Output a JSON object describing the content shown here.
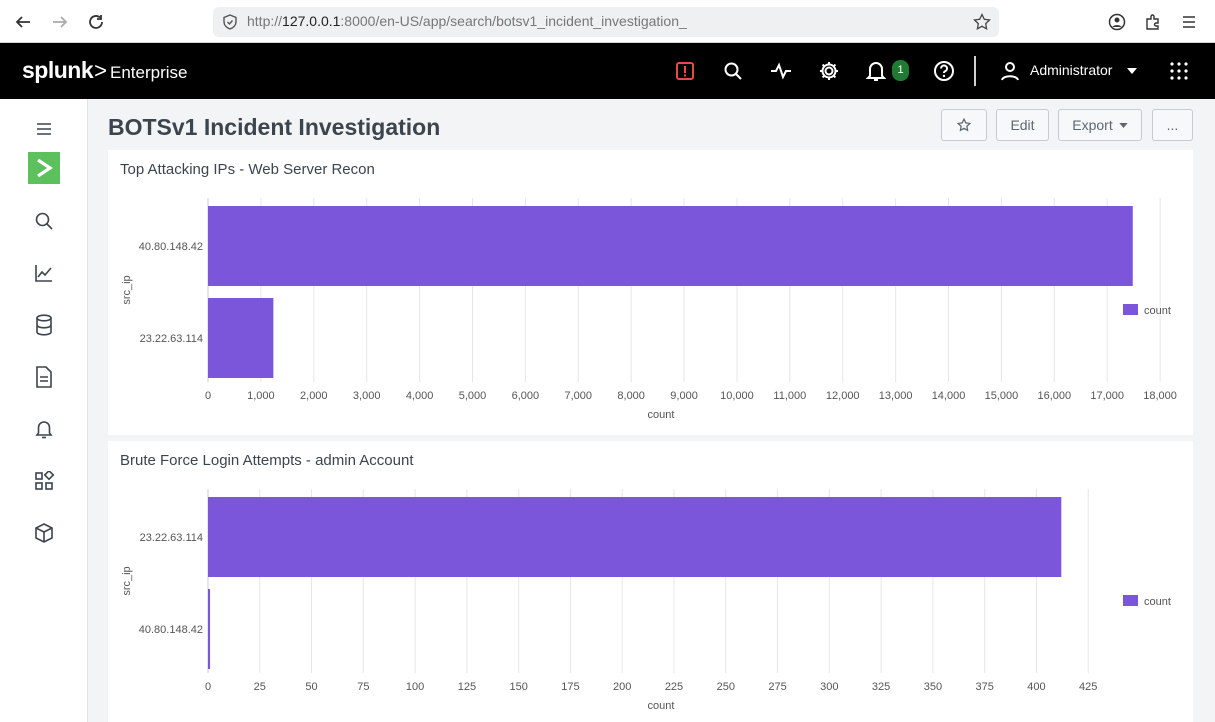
{
  "browser": {
    "url_prefix": "http://",
    "url_host": "127.0.0.1",
    "url_rest": ":8000/en-US/app/search/botsv1_incident_investigation_"
  },
  "topnav": {
    "brand": "splunk",
    "product": "Enterprise",
    "notification_count": "1",
    "user": "Administrator",
    "alert_color": "#e84a4a",
    "badge_color": "#1f7a34"
  },
  "sidebar": {
    "items": [
      "menu-icon",
      "app-tile",
      "search-icon",
      "chart-icon",
      "datasets-icon",
      "reports-icon",
      "alerts-icon",
      "dashboards-icon",
      "apps-icon"
    ],
    "app_color": "#5cc05c"
  },
  "dashboard": {
    "title": "BOTSv1 Incident Investigation",
    "edit_label": "Edit",
    "export_label": "Export",
    "more_label": "..."
  },
  "panels": [
    {
      "title": "Top Attacking IPs - Web Server Recon",
      "ylabel": "src_ip",
      "xlabel": "count",
      "legend": "count"
    },
    {
      "title": "Brute Force Login Attempts - admin Account",
      "ylabel": "src_ip",
      "xlabel": "count",
      "legend": "count"
    }
  ],
  "chart_data": [
    {
      "type": "bar",
      "orientation": "horizontal",
      "categories": [
        "40.80.148.42",
        "23.22.63.114"
      ],
      "series": [
        {
          "name": "count",
          "values": [
            17483,
            1236
          ]
        }
      ],
      "xlim": [
        0,
        19000
      ],
      "xticks": [
        0,
        1000,
        2000,
        3000,
        4000,
        5000,
        6000,
        7000,
        8000,
        9000,
        10000,
        11000,
        12000,
        13000,
        14000,
        15000,
        16000,
        17000,
        18000
      ],
      "xticklabels": [
        "0",
        "1,000",
        "2,000",
        "3,000",
        "4,000",
        "5,000",
        "6,000",
        "7,000",
        "8,000",
        "9,000",
        "10,000",
        "11,000",
        "12,000",
        "13,000",
        "14,000",
        "15,000",
        "16,000",
        "17,000",
        "18,000"
      ],
      "xlabel": "count",
      "ylabel": "src_ip",
      "grid": true,
      "legend": "right",
      "color": "#7b56db"
    },
    {
      "type": "bar",
      "orientation": "horizontal",
      "categories": [
        "23.22.63.114",
        "40.80.148.42"
      ],
      "series": [
        {
          "name": "count",
          "values": [
            412,
            1
          ]
        }
      ],
      "xlim": [
        0,
        450
      ],
      "xticks": [
        0,
        25,
        50,
        75,
        100,
        125,
        150,
        175,
        200,
        225,
        250,
        275,
        300,
        325,
        350,
        375,
        400,
        425
      ],
      "xticklabels": [
        "0",
        "25",
        "50",
        "75",
        "100",
        "125",
        "150",
        "175",
        "200",
        "225",
        "250",
        "275",
        "300",
        "325",
        "350",
        "375",
        "400",
        "425"
      ],
      "xlabel": "count",
      "ylabel": "src_ip",
      "grid": true,
      "legend": "right",
      "color": "#7b56db"
    }
  ]
}
